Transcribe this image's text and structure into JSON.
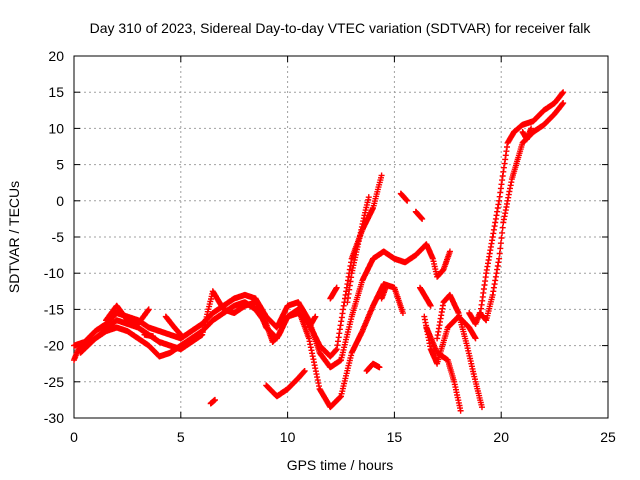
{
  "chart_data": {
    "type": "scatter",
    "title": "Day 310 of 2023, Sidereal Day-to-day VTEC variation (SDTVAR) for receiver falk",
    "xlabel": "GPS time / hours",
    "ylabel": "SDTVAR / TECUs",
    "xlim": [
      0,
      25
    ],
    "ylim": [
      -30,
      20
    ],
    "xticks": [
      0,
      5,
      10,
      15,
      20,
      25
    ],
    "yticks": [
      -30,
      -25,
      -20,
      -15,
      -10,
      -5,
      0,
      5,
      10,
      15,
      20
    ],
    "grid": true,
    "marker": "+",
    "color": "#ff0000",
    "series": [
      {
        "points": [
          [
            0.0,
            -22.0
          ],
          [
            0.2,
            -20.5
          ],
          [
            0.5,
            -20.0
          ],
          [
            1.0,
            -19.0
          ],
          [
            1.5,
            -18.0
          ],
          [
            2.0,
            -17.5
          ],
          [
            2.5,
            -18.0
          ],
          [
            3.0,
            -19.0
          ],
          [
            3.5,
            -20.0
          ],
          [
            4.0,
            -21.5
          ],
          [
            4.5,
            -21.0
          ],
          [
            5.0,
            -20.0
          ],
          [
            5.5,
            -19.0
          ],
          [
            6.0,
            -18.0
          ],
          [
            6.5,
            -16.5
          ],
          [
            7.0,
            -15.5
          ],
          [
            7.5,
            -14.5
          ],
          [
            8.0,
            -14.0
          ],
          [
            8.5,
            -15.0
          ],
          [
            9.0,
            -17.0
          ],
          [
            9.3,
            -19.5
          ],
          [
            9.6,
            -18.5
          ],
          [
            10.0,
            -16.0
          ],
          [
            10.5,
            -15.5
          ],
          [
            11.0,
            -17.0
          ],
          [
            11.5,
            -20.0
          ],
          [
            12.0,
            -21.5
          ],
          [
            12.3,
            -20.5
          ],
          [
            12.6,
            -15.0
          ],
          [
            13.0,
            -8.0
          ],
          [
            13.5,
            -4.0
          ],
          [
            14.0,
            -1.0
          ],
          [
            14.4,
            3.5
          ]
        ]
      },
      {
        "points": [
          [
            0.0,
            -20.0
          ],
          [
            0.5,
            -19.5
          ],
          [
            1.0,
            -18.0
          ],
          [
            1.5,
            -17.0
          ],
          [
            2.0,
            -15.5
          ],
          [
            2.5,
            -16.0
          ],
          [
            3.0,
            -16.5
          ],
          [
            3.5,
            -17.5
          ],
          [
            4.0,
            -18.0
          ],
          [
            4.5,
            -18.5
          ],
          [
            5.0,
            -19.0
          ],
          [
            5.5,
            -18.0
          ],
          [
            6.0,
            -17.0
          ],
          [
            6.5,
            -15.5
          ],
          [
            7.0,
            -14.5
          ],
          [
            7.5,
            -13.5
          ],
          [
            8.0,
            -13.0
          ],
          [
            8.5,
            -13.5
          ],
          [
            9.0,
            -16.0
          ],
          [
            9.5,
            -17.5
          ],
          [
            10.0,
            -14.5
          ],
          [
            10.5,
            -14.0
          ],
          [
            11.0,
            -16.5
          ],
          [
            11.5,
            -21.0
          ],
          [
            12.0,
            -23.0
          ],
          [
            12.5,
            -22.0
          ],
          [
            13.0,
            -16.0
          ],
          [
            13.5,
            -11.0
          ],
          [
            14.0,
            -8.0
          ],
          [
            14.5,
            -7.0
          ],
          [
            15.0,
            -8.0
          ],
          [
            15.5,
            -8.5
          ],
          [
            16.0,
            -7.5
          ],
          [
            16.5,
            -6.0
          ],
          [
            16.8,
            -8.0
          ],
          [
            17.0,
            -10.5
          ],
          [
            17.3,
            -9.5
          ],
          [
            17.6,
            -7.0
          ]
        ]
      },
      {
        "points": [
          [
            0.3,
            -21.0
          ],
          [
            1.0,
            -19.0
          ],
          [
            2.0,
            -16.5
          ],
          [
            3.0,
            -17.5
          ],
          [
            4.0,
            -19.5
          ],
          [
            5.0,
            -20.5
          ],
          [
            6.0,
            -18.5
          ],
          [
            6.5,
            -12.5
          ],
          [
            7.0,
            -15.0
          ],
          [
            7.5,
            -15.5
          ],
          [
            8.0,
            -14.5
          ],
          [
            8.5,
            -14.0
          ],
          [
            9.0,
            -17.5
          ],
          [
            9.5,
            -19.0
          ],
          [
            10.0,
            -16.0
          ],
          [
            10.5,
            -15.0
          ],
          [
            11.0,
            -19.0
          ],
          [
            11.5,
            -26.0
          ],
          [
            12.0,
            -28.5
          ],
          [
            12.5,
            -27.0
          ],
          [
            13.0,
            -21.0
          ],
          [
            13.5,
            -18.0
          ],
          [
            14.0,
            -14.5
          ],
          [
            14.5,
            -11.5
          ],
          [
            15.0,
            -12.0
          ],
          [
            15.4,
            -15.5
          ]
        ]
      },
      {
        "points": [
          [
            1.5,
            -16.5
          ],
          [
            2.0,
            -14.5
          ],
          [
            2.5,
            -16.5
          ],
          [
            3.0,
            -17.0
          ],
          [
            3.5,
            -15.0
          ]
        ]
      },
      {
        "points": [
          [
            3.3,
            -18.5
          ],
          [
            3.7,
            -18.7
          ]
        ]
      },
      {
        "points": [
          [
            4.3,
            -16.0
          ],
          [
            4.7,
            -17.5
          ],
          [
            5.0,
            -18.5
          ]
        ]
      },
      {
        "points": [
          [
            6.4,
            -28.0
          ],
          [
            6.6,
            -27.5
          ]
        ]
      },
      {
        "points": [
          [
            9.0,
            -25.5
          ],
          [
            9.5,
            -27.0
          ],
          [
            10.0,
            -26.0
          ],
          [
            10.5,
            -24.5
          ],
          [
            10.8,
            -23.5
          ]
        ]
      },
      {
        "points": [
          [
            11.0,
            -17.5
          ],
          [
            11.3,
            -16.0
          ]
        ]
      },
      {
        "points": [
          [
            12.0,
            -13.5
          ],
          [
            12.3,
            -12.0
          ]
        ]
      },
      {
        "points": [
          [
            12.8,
            -14.0
          ],
          [
            13.0,
            -10.0
          ],
          [
            13.3,
            -6.0
          ],
          [
            13.6,
            -2.0
          ],
          [
            13.8,
            0.5
          ]
        ]
      },
      {
        "points": [
          [
            13.7,
            -23.5
          ],
          [
            14.0,
            -22.5
          ],
          [
            14.3,
            -23.0
          ]
        ]
      },
      {
        "points": [
          [
            14.4,
            -13.5
          ],
          [
            14.6,
            -12.0
          ]
        ]
      },
      {
        "points": [
          [
            15.3,
            1.0
          ],
          [
            15.6,
            0.0
          ]
        ]
      },
      {
        "points": [
          [
            16.0,
            -1.5
          ],
          [
            16.3,
            -2.5
          ]
        ]
      },
      {
        "points": [
          [
            16.2,
            -12.0
          ],
          [
            16.5,
            -13.5
          ],
          [
            16.7,
            -14.5
          ]
        ]
      },
      {
        "points": [
          [
            16.4,
            -16.0
          ],
          [
            16.7,
            -20.5
          ],
          [
            17.0,
            -22.5
          ],
          [
            17.5,
            -17.5
          ],
          [
            18.0,
            -16.0
          ],
          [
            18.5,
            -17.5
          ],
          [
            18.8,
            -19.0
          ]
        ]
      },
      {
        "points": [
          [
            16.5,
            -17.5
          ],
          [
            17.0,
            -21.0
          ],
          [
            17.5,
            -22.0
          ],
          [
            17.8,
            -25.0
          ],
          [
            18.1,
            -29.0
          ]
        ]
      },
      {
        "points": [
          [
            17.0,
            -19.0
          ],
          [
            17.3,
            -14.0
          ],
          [
            17.6,
            -13.0
          ],
          [
            18.0,
            -15.5
          ],
          [
            18.4,
            -20.0
          ],
          [
            18.8,
            -25.0
          ],
          [
            19.1,
            -28.5
          ]
        ]
      },
      {
        "points": [
          [
            18.5,
            -15.5
          ],
          [
            18.8,
            -17.0
          ],
          [
            19.0,
            -15.5
          ],
          [
            19.3,
            -16.5
          ],
          [
            19.6,
            -13.0
          ],
          [
            19.9,
            -8.0
          ],
          [
            20.1,
            -3.0
          ],
          [
            20.3,
            0.0
          ],
          [
            20.5,
            3.0
          ],
          [
            20.8,
            6.0
          ],
          [
            21.0,
            8.0
          ],
          [
            21.5,
            9.5
          ],
          [
            22.0,
            10.5
          ],
          [
            22.5,
            12.0
          ],
          [
            22.9,
            13.5
          ]
        ]
      },
      {
        "points": [
          [
            19.0,
            -16.0
          ],
          [
            19.3,
            -10.0
          ],
          [
            19.6,
            -5.0
          ],
          [
            19.9,
            0.0
          ],
          [
            20.1,
            4.0
          ],
          [
            20.3,
            8.0
          ],
          [
            20.6,
            9.5
          ],
          [
            21.0,
            10.5
          ],
          [
            21.5,
            11.0
          ],
          [
            22.0,
            12.5
          ],
          [
            22.5,
            13.5
          ],
          [
            22.9,
            15.0
          ]
        ]
      },
      {
        "points": [
          [
            21.0,
            9.5
          ],
          [
            21.2,
            8.5
          ],
          [
            21.4,
            10.0
          ]
        ]
      }
    ]
  }
}
